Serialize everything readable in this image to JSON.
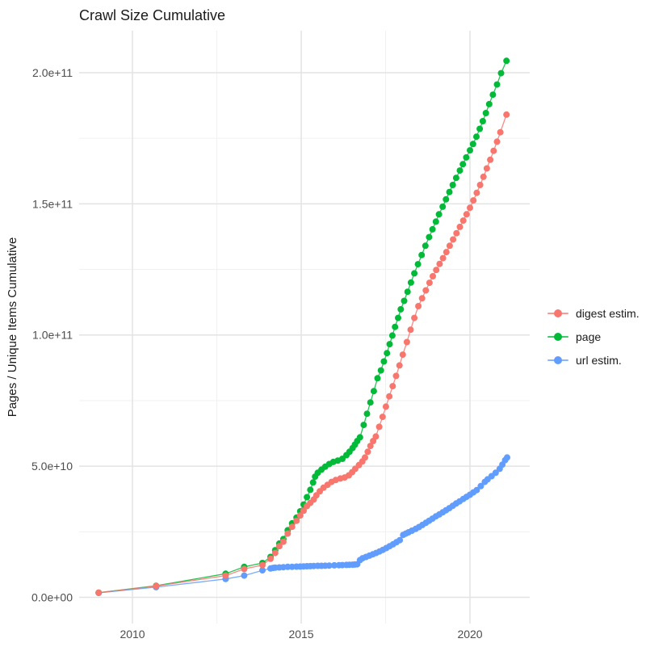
{
  "title": "Crawl Size Cumulative",
  "colors": {
    "background": "#ffffff",
    "grid_major": "#e3e3e3",
    "grid_minor": "#f1f1f1",
    "axis_text": "#4d4d4d",
    "title_text": "#1a1a1a",
    "digest": "#F8766D",
    "page": "#00BA38",
    "url": "#619CFF"
  },
  "y_axis": {
    "label": "Pages / Unique Items Cumulative",
    "ticks": [
      {
        "value": 0,
        "label": "0.0e+00"
      },
      {
        "value": 50,
        "label": "5.0e+10"
      },
      {
        "value": 100,
        "label": "1.0e+11"
      },
      {
        "value": 150,
        "label": "1.5e+11"
      },
      {
        "value": 200,
        "label": "2.0e+11"
      }
    ],
    "minor_ticks": [
      25,
      75,
      125,
      175
    ],
    "domain_billions": [
      -10,
      216
    ]
  },
  "x_axis": {
    "ticks": [
      {
        "value": 2010,
        "label": "2010"
      },
      {
        "value": 2015,
        "label": "2015"
      },
      {
        "value": 2020,
        "label": "2020"
      }
    ],
    "minor_ticks": [
      2012.5,
      2017.5
    ],
    "domain_years": [
      2008.42,
      2021.77
    ]
  },
  "legend": {
    "position": "right",
    "items": [
      {
        "id": "digest",
        "label": "digest estim.",
        "color": "#F8766D"
      },
      {
        "id": "page",
        "label": "page",
        "color": "#00BA38"
      },
      {
        "id": "url",
        "label": "url estim.",
        "color": "#619CFF"
      }
    ]
  },
  "chart_data": {
    "type": "line",
    "title": "Crawl Size Cumulative",
    "xlabel": "",
    "ylabel": "Pages / Unique Items Cumulative",
    "x_unit": "year",
    "value_unit": "billions (1e9) of pages / unique items, cumulative",
    "xlim": [
      2008.42,
      2021.77
    ],
    "ylim_billions": [
      -10,
      216
    ],
    "grid": true,
    "legend_position": "right",
    "marker": "point",
    "draw_order": [
      "url",
      "page",
      "digest"
    ],
    "series": [
      {
        "id": "digest",
        "name": "digest estim.",
        "color": "#F8766D",
        "points": [
          [
            2009.0,
            1.8
          ],
          [
            2010.7,
            4.3
          ],
          [
            2012.76,
            8.3
          ],
          [
            2013.31,
            10.8
          ],
          [
            2013.85,
            12.3
          ],
          [
            2014.09,
            14.7
          ],
          [
            2014.23,
            16.9
          ],
          [
            2014.35,
            19.5
          ],
          [
            2014.47,
            21.2
          ],
          [
            2014.6,
            24.3
          ],
          [
            2014.73,
            26.9
          ],
          [
            2014.86,
            29.2
          ],
          [
            2014.97,
            31.2
          ],
          [
            2015.07,
            33.0
          ],
          [
            2015.17,
            34.8
          ],
          [
            2015.27,
            36.0
          ],
          [
            2015.37,
            37.3
          ],
          [
            2015.45,
            38.9
          ],
          [
            2015.55,
            40.4
          ],
          [
            2015.66,
            41.8
          ],
          [
            2015.78,
            42.9
          ],
          [
            2015.9,
            44.0
          ],
          [
            2016.02,
            44.7
          ],
          [
            2016.16,
            45.3
          ],
          [
            2016.29,
            45.7
          ],
          [
            2016.41,
            46.5
          ],
          [
            2016.51,
            47.7
          ],
          [
            2016.6,
            49.0
          ],
          [
            2016.71,
            50.4
          ],
          [
            2016.81,
            51.8
          ],
          [
            2016.89,
            53.3
          ],
          [
            2016.97,
            55.5
          ],
          [
            2017.05,
            57.7
          ],
          [
            2017.13,
            59.6
          ],
          [
            2017.21,
            61.3
          ],
          [
            2017.31,
            65.0
          ],
          [
            2017.41,
            68.8
          ],
          [
            2017.51,
            72.7
          ],
          [
            2017.61,
            76.6
          ],
          [
            2017.71,
            80.5
          ],
          [
            2017.81,
            84.4
          ],
          [
            2017.91,
            88.4
          ],
          [
            2018.01,
            92.5
          ],
          [
            2018.13,
            97.3
          ],
          [
            2018.24,
            102.0
          ],
          [
            2018.35,
            106.5
          ],
          [
            2018.47,
            111.0
          ],
          [
            2018.58,
            114.0
          ],
          [
            2018.69,
            117.0
          ],
          [
            2018.8,
            119.9
          ],
          [
            2018.9,
            122.4
          ],
          [
            2019.0,
            124.8
          ],
          [
            2019.1,
            127.1
          ],
          [
            2019.2,
            129.3
          ],
          [
            2019.3,
            131.6
          ],
          [
            2019.4,
            134.0
          ],
          [
            2019.5,
            136.4
          ],
          [
            2019.6,
            138.8
          ],
          [
            2019.7,
            141.2
          ],
          [
            2019.8,
            143.6
          ],
          [
            2019.9,
            146.0
          ],
          [
            2020.0,
            148.5
          ],
          [
            2020.1,
            151.3
          ],
          [
            2020.2,
            154.2
          ],
          [
            2020.3,
            157.2
          ],
          [
            2020.4,
            160.3
          ],
          [
            2020.5,
            163.5
          ],
          [
            2020.6,
            166.8
          ],
          [
            2020.7,
            170.2
          ],
          [
            2020.8,
            173.7
          ],
          [
            2020.9,
            177.3
          ],
          [
            2021.08,
            184.0
          ]
        ]
      },
      {
        "id": "page",
        "name": "page",
        "color": "#00BA38",
        "points": [
          [
            2009.0,
            1.8
          ],
          [
            2010.7,
            4.4
          ],
          [
            2012.76,
            9.0
          ],
          [
            2013.31,
            11.6
          ],
          [
            2013.85,
            13.1
          ],
          [
            2014.09,
            15.4
          ],
          [
            2014.23,
            18.0
          ],
          [
            2014.35,
            20.5
          ],
          [
            2014.47,
            22.2
          ],
          [
            2014.6,
            25.6
          ],
          [
            2014.73,
            28.2
          ],
          [
            2014.86,
            30.4
          ],
          [
            2014.97,
            32.8
          ],
          [
            2015.07,
            35.4
          ],
          [
            2015.17,
            38.2
          ],
          [
            2015.27,
            41.0
          ],
          [
            2015.35,
            43.8
          ],
          [
            2015.41,
            46.0
          ],
          [
            2015.49,
            47.5
          ],
          [
            2015.6,
            48.7
          ],
          [
            2015.71,
            49.8
          ],
          [
            2015.83,
            50.8
          ],
          [
            2015.95,
            51.6
          ],
          [
            2016.08,
            52.1
          ],
          [
            2016.22,
            52.8
          ],
          [
            2016.34,
            54.2
          ],
          [
            2016.43,
            55.5
          ],
          [
            2016.52,
            56.9
          ],
          [
            2016.59,
            58.2
          ],
          [
            2016.66,
            59.6
          ],
          [
            2016.74,
            61.0
          ],
          [
            2016.85,
            65.7
          ],
          [
            2016.95,
            70.0
          ],
          [
            2017.05,
            74.3
          ],
          [
            2017.15,
            78.6
          ],
          [
            2017.26,
            83.5
          ],
          [
            2017.36,
            86.5
          ],
          [
            2017.45,
            89.9
          ],
          [
            2017.54,
            93.1
          ],
          [
            2017.62,
            96.5
          ],
          [
            2017.7,
            99.8
          ],
          [
            2017.78,
            103.1
          ],
          [
            2017.87,
            106.5
          ],
          [
            2017.95,
            109.8
          ],
          [
            2018.05,
            113.0
          ],
          [
            2018.15,
            116.5
          ],
          [
            2018.25,
            120.0
          ],
          [
            2018.35,
            123.5
          ],
          [
            2018.46,
            127.0
          ],
          [
            2018.57,
            130.5
          ],
          [
            2018.68,
            134.0
          ],
          [
            2018.79,
            137.3
          ],
          [
            2018.89,
            140.3
          ],
          [
            2018.99,
            143.2
          ],
          [
            2019.08,
            146.0
          ],
          [
            2019.19,
            148.9
          ],
          [
            2019.29,
            151.7
          ],
          [
            2019.39,
            154.5
          ],
          [
            2019.49,
            157.2
          ],
          [
            2019.59,
            159.9
          ],
          [
            2019.7,
            162.7
          ],
          [
            2019.79,
            165.1
          ],
          [
            2019.89,
            167.7
          ],
          [
            2020.0,
            170.4
          ],
          [
            2020.09,
            172.8
          ],
          [
            2020.19,
            175.6
          ],
          [
            2020.29,
            178.6
          ],
          [
            2020.38,
            181.5
          ],
          [
            2020.47,
            184.6
          ],
          [
            2020.57,
            188.0
          ],
          [
            2020.68,
            191.6
          ],
          [
            2020.8,
            195.5
          ],
          [
            2020.92,
            199.8
          ],
          [
            2021.08,
            204.5
          ]
        ]
      },
      {
        "id": "url",
        "name": "url estim.",
        "color": "#619CFF",
        "points": [
          [
            2009.0,
            1.7
          ],
          [
            2010.7,
            3.9
          ],
          [
            2012.76,
            7.0
          ],
          [
            2013.31,
            8.3
          ],
          [
            2013.85,
            10.3
          ],
          [
            2014.09,
            11.0
          ],
          [
            2014.17,
            11.2
          ],
          [
            2014.23,
            11.3
          ],
          [
            2014.35,
            11.4
          ],
          [
            2014.47,
            11.5
          ],
          [
            2014.6,
            11.6
          ],
          [
            2014.73,
            11.65
          ],
          [
            2014.86,
            11.7
          ],
          [
            2014.97,
            11.75
          ],
          [
            2015.07,
            11.8
          ],
          [
            2015.17,
            11.85
          ],
          [
            2015.27,
            11.9
          ],
          [
            2015.37,
            11.95
          ],
          [
            2015.49,
            12.0
          ],
          [
            2015.6,
            12.0
          ],
          [
            2015.71,
            12.05
          ],
          [
            2015.83,
            12.1
          ],
          [
            2015.98,
            12.2
          ],
          [
            2016.12,
            12.25
          ],
          [
            2016.22,
            12.3
          ],
          [
            2016.34,
            12.35
          ],
          [
            2016.43,
            12.4
          ],
          [
            2016.52,
            12.45
          ],
          [
            2016.59,
            12.5
          ],
          [
            2016.66,
            12.6
          ],
          [
            2016.74,
            14.2
          ],
          [
            2016.82,
            14.9
          ],
          [
            2016.92,
            15.4
          ],
          [
            2017.02,
            15.9
          ],
          [
            2017.12,
            16.4
          ],
          [
            2017.22,
            16.9
          ],
          [
            2017.32,
            17.5
          ],
          [
            2017.42,
            18.1
          ],
          [
            2017.52,
            18.8
          ],
          [
            2017.62,
            19.5
          ],
          [
            2017.72,
            20.2
          ],
          [
            2017.82,
            21.0
          ],
          [
            2017.92,
            21.8
          ],
          [
            2018.02,
            23.8
          ],
          [
            2018.1,
            24.3
          ],
          [
            2018.18,
            24.8
          ],
          [
            2018.28,
            25.4
          ],
          [
            2018.39,
            26.1
          ],
          [
            2018.49,
            26.8
          ],
          [
            2018.59,
            27.6
          ],
          [
            2018.69,
            28.4
          ],
          [
            2018.79,
            29.2
          ],
          [
            2018.89,
            30.0
          ],
          [
            2018.99,
            30.9
          ],
          [
            2019.09,
            31.6
          ],
          [
            2019.19,
            32.4
          ],
          [
            2019.29,
            33.2
          ],
          [
            2019.39,
            34.0
          ],
          [
            2019.49,
            34.9
          ],
          [
            2019.59,
            35.8
          ],
          [
            2019.69,
            36.6
          ],
          [
            2019.8,
            37.5
          ],
          [
            2019.9,
            38.3
          ],
          [
            2020.0,
            39.1
          ],
          [
            2020.1,
            40.0
          ],
          [
            2020.2,
            40.9
          ],
          [
            2020.32,
            42.4
          ],
          [
            2020.44,
            44.0
          ],
          [
            2020.52,
            45.0
          ],
          [
            2020.64,
            46.2
          ],
          [
            2020.76,
            47.5
          ],
          [
            2020.88,
            49.0
          ],
          [
            2020.96,
            50.6
          ],
          [
            2021.04,
            52.3
          ],
          [
            2021.1,
            53.3
          ]
        ]
      }
    ]
  }
}
